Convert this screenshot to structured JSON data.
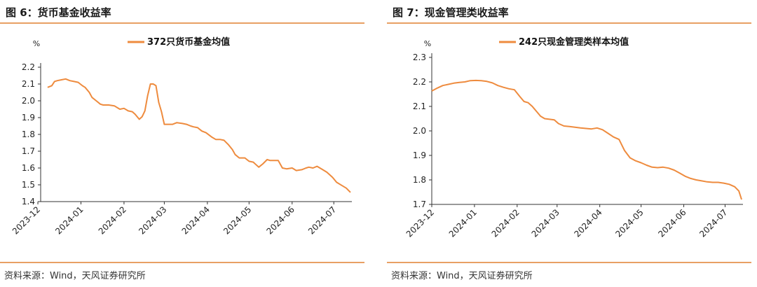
{
  "series_color": "#ee8b3e",
  "charts": [
    {
      "figure_title": "图 6：货币基金收益率",
      "source": "资料来源：Wind，天风证券研究所",
      "chart_data": {
        "type": "line",
        "ylabel": "%",
        "ylim": [
          1.4,
          2.2
        ],
        "yticks": [
          "2.2",
          "2.1",
          "2.0",
          "1.9",
          "1.8",
          "1.7",
          "1.6",
          "1.5",
          "1.4"
        ],
        "xticks": [
          "2023-12",
          "2024-01",
          "2024-02",
          "2024-03",
          "2024-04",
          "2024-05",
          "2024-06",
          "2024-07"
        ],
        "grid": false,
        "legend": "top-center",
        "series": [
          {
            "name": "372只货币基金均值",
            "x": [
              "2023-12-08",
              "2023-12-11",
              "2023-12-13",
              "2023-12-15",
              "2023-12-18",
              "2023-12-21",
              "2023-12-24",
              "2023-12-27",
              "2023-12-30",
              "2024-01-02",
              "2024-01-04",
              "2024-01-07",
              "2024-01-09",
              "2024-01-12",
              "2024-01-15",
              "2024-01-17",
              "2024-01-21",
              "2024-01-25",
              "2024-01-29",
              "2024-02-01",
              "2024-02-04",
              "2024-02-07",
              "2024-02-09",
              "2024-02-12",
              "2024-02-14",
              "2024-02-16",
              "2024-02-18",
              "2024-02-20",
              "2024-02-22",
              "2024-02-24",
              "2024-02-26",
              "2024-02-28",
              "2024-03-01",
              "2024-03-04",
              "2024-03-07",
              "2024-03-10",
              "2024-03-14",
              "2024-03-17",
              "2024-03-20",
              "2024-03-22",
              "2024-03-25",
              "2024-03-28",
              "2024-03-31",
              "2024-04-04",
              "2024-04-07",
              "2024-04-10",
              "2024-04-13",
              "2024-04-16",
              "2024-04-19",
              "2024-04-21",
              "2024-04-24",
              "2024-04-28",
              "2024-05-01",
              "2024-05-04",
              "2024-05-06",
              "2024-05-08",
              "2024-05-11",
              "2024-05-14",
              "2024-05-16",
              "2024-05-19",
              "2024-05-22",
              "2024-05-25",
              "2024-05-28",
              "2024-06-01",
              "2024-06-04",
              "2024-06-08",
              "2024-06-11",
              "2024-06-13",
              "2024-06-16",
              "2024-06-19",
              "2024-06-23",
              "2024-06-26",
              "2024-06-30",
              "2024-07-03",
              "2024-07-07",
              "2024-07-10",
              "2024-07-13"
            ],
            "values": [
              2.08,
              2.09,
              2.115,
              2.12,
              2.125,
              2.13,
              2.12,
              2.115,
              2.11,
              2.09,
              2.08,
              2.05,
              2.02,
              2.0,
              1.98,
              1.975,
              1.975,
              1.97,
              1.95,
              1.955,
              1.94,
              1.935,
              1.92,
              1.89,
              1.905,
              1.94,
              2.03,
              2.1,
              2.1,
              2.09,
              1.99,
              1.935,
              1.86,
              1.86,
              1.86,
              1.87,
              1.865,
              1.86,
              1.85,
              1.845,
              1.84,
              1.82,
              1.81,
              1.785,
              1.77,
              1.77,
              1.765,
              1.74,
              1.71,
              1.68,
              1.66,
              1.66,
              1.64,
              1.635,
              1.62,
              1.605,
              1.625,
              1.65,
              1.645,
              1.645,
              1.645,
              1.6,
              1.595,
              1.6,
              1.585,
              1.59,
              1.6,
              1.605,
              1.6,
              1.61,
              1.59,
              1.575,
              1.545,
              1.515,
              1.495,
              1.48,
              1.455
            ]
          }
        ]
      }
    },
    {
      "figure_title": "图 7：现金管理类收益率",
      "source": "资料来源：Wind，天风证券研究所",
      "chart_data": {
        "type": "line",
        "ylabel": "%",
        "ylim": [
          1.7,
          2.3
        ],
        "yticks": [
          "2.3",
          "2.2",
          "2.1",
          "2.0",
          "1.9",
          "1.8",
          "1.7"
        ],
        "xticks": [
          "2023-12",
          "2024-01",
          "2024-02",
          "2024-03",
          "2024-04",
          "2024-05",
          "2024-06",
          "2024-07"
        ],
        "grid": false,
        "legend": "top-center",
        "series": [
          {
            "name": "242只现金管理类样本均值",
            "x": [
              "2023-12-01",
              "2023-12-05",
              "2023-12-09",
              "2023-12-13",
              "2023-12-17",
              "2023-12-21",
              "2023-12-25",
              "2023-12-29",
              "2024-01-02",
              "2024-01-06",
              "2024-01-10",
              "2024-01-14",
              "2024-01-18",
              "2024-01-22",
              "2024-01-26",
              "2024-01-30",
              "2024-02-03",
              "2024-02-06",
              "2024-02-09",
              "2024-02-12",
              "2024-02-15",
              "2024-02-18",
              "2024-02-21",
              "2024-02-24",
              "2024-02-28",
              "2024-03-02",
              "2024-03-06",
              "2024-03-10",
              "2024-03-14",
              "2024-03-18",
              "2024-03-22",
              "2024-03-26",
              "2024-03-30",
              "2024-04-03",
              "2024-04-07",
              "2024-04-11",
              "2024-04-15",
              "2024-04-19",
              "2024-04-23",
              "2024-04-27",
              "2024-05-01",
              "2024-05-05",
              "2024-05-09",
              "2024-05-13",
              "2024-05-17",
              "2024-05-21",
              "2024-05-25",
              "2024-05-29",
              "2024-06-02",
              "2024-06-06",
              "2024-06-10",
              "2024-06-14",
              "2024-06-18",
              "2024-06-22",
              "2024-06-26",
              "2024-06-30",
              "2024-07-04",
              "2024-07-08",
              "2024-07-11",
              "2024-07-13"
            ],
            "values": [
              2.163,
              2.175,
              2.185,
              2.19,
              2.195,
              2.198,
              2.2,
              2.205,
              2.206,
              2.205,
              2.202,
              2.196,
              2.185,
              2.178,
              2.172,
              2.168,
              2.14,
              2.12,
              2.115,
              2.1,
              2.08,
              2.06,
              2.05,
              2.048,
              2.045,
              2.03,
              2.02,
              2.018,
              2.015,
              2.012,
              2.01,
              2.008,
              2.012,
              2.005,
              1.99,
              1.975,
              1.965,
              1.92,
              1.89,
              1.878,
              1.87,
              1.86,
              1.852,
              1.85,
              1.852,
              1.848,
              1.84,
              1.828,
              1.815,
              1.806,
              1.8,
              1.796,
              1.792,
              1.79,
              1.79,
              1.787,
              1.782,
              1.772,
              1.755,
              1.72
            ]
          }
        ]
      }
    }
  ]
}
